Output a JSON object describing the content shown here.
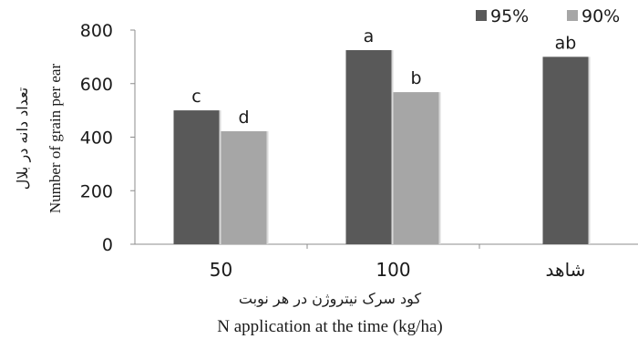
{
  "chart_data": {
    "type": "bar",
    "categories": [
      "50",
      "100",
      "شاهد"
    ],
    "series": [
      {
        "name": "95%",
        "color": "#595959",
        "values": [
          500,
          725,
          700
        ]
      },
      {
        "name": "90%",
        "color": "#a6a6a6",
        "values": [
          422,
          568,
          null
        ]
      }
    ],
    "significance_letters": [
      [
        "c",
        "a",
        "ab"
      ],
      [
        "d",
        "b",
        null
      ]
    ],
    "ylim": [
      0,
      800
    ],
    "yticks": [
      0,
      200,
      400,
      600,
      800
    ],
    "ylabel_fa": "تعداد دانه در بلال",
    "ylabel_en": "Number of grain per ear",
    "xlabel_fa": "کود سرک نیتروژن در هر نوبت",
    "xlabel_en": "N application at the time (kg/ha)",
    "grid": false,
    "legend_position": "top-right"
  }
}
